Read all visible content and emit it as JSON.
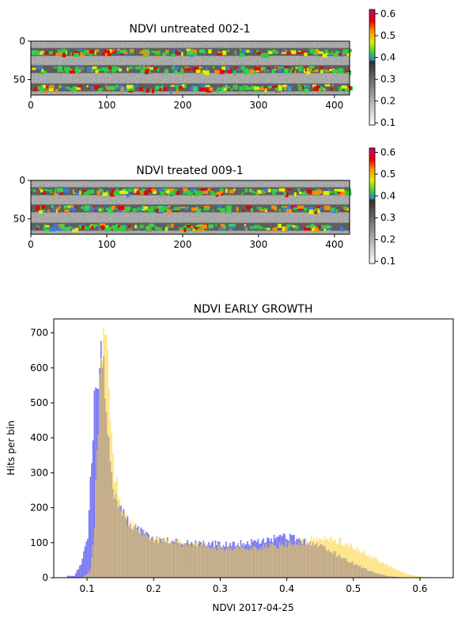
{
  "images": [
    {
      "title": "NDVI untreated 002-1",
      "x_ticks": [
        "0",
        "100",
        "200",
        "300",
        "400"
      ],
      "y_ticks": [
        "0",
        "50"
      ],
      "x_tick_values": [
        0,
        100,
        200,
        300,
        400
      ],
      "y_tick_values": [
        0,
        50
      ],
      "xlim": [
        0,
        420
      ],
      "ylim": [
        0,
        70
      ],
      "colorbar_ticks": [
        "0.6",
        "0.5",
        "0.4",
        "0.3",
        "0.2",
        "0.1"
      ],
      "colorbar_values": [
        0.6,
        0.5,
        0.4,
        0.3,
        0.2,
        0.1
      ],
      "colorbar_range": [
        0.09,
        0.62
      ]
    },
    {
      "title": "NDVI treated 009-1",
      "x_ticks": [
        "0",
        "100",
        "200",
        "300",
        "400"
      ],
      "y_ticks": [
        "0",
        "50"
      ],
      "x_tick_values": [
        0,
        100,
        200,
        300,
        400
      ],
      "y_tick_values": [
        0,
        50
      ],
      "xlim": [
        0,
        420
      ],
      "ylim": [
        0,
        70
      ],
      "colorbar_ticks": [
        "0.6",
        "0.5",
        "0.4",
        "0.3",
        "0.2",
        "0.1"
      ],
      "colorbar_values": [
        0.6,
        0.5,
        0.4,
        0.3,
        0.2,
        0.1
      ],
      "colorbar_range": [
        0.09,
        0.62
      ]
    }
  ],
  "colors": {
    "series_blue": "#7b7bf5",
    "series_yellow": "#fde58a",
    "overlap": "#c2aa86"
  },
  "chart_data": {
    "type": "bar",
    "title": "NDVI EARLY GROWTH",
    "xlabel": "NDVI 2017-04-25",
    "ylabel": "Hits per bin",
    "xlim": [
      0.05,
      0.65
    ],
    "ylim": [
      0,
      740
    ],
    "x_ticks": [
      "0.1",
      "0.2",
      "0.3",
      "0.4",
      "0.5",
      "0.6"
    ],
    "x_tick_values": [
      0.1,
      0.2,
      0.3,
      0.4,
      0.5,
      0.6
    ],
    "y_ticks": [
      "0",
      "100",
      "200",
      "300",
      "400",
      "500",
      "600",
      "700"
    ],
    "y_tick_values": [
      0,
      100,
      200,
      300,
      400,
      500,
      600,
      700
    ],
    "x": [
      0.08,
      0.09,
      0.1,
      0.105,
      0.11,
      0.115,
      0.12,
      0.125,
      0.13,
      0.135,
      0.14,
      0.15,
      0.16,
      0.18,
      0.2,
      0.25,
      0.3,
      0.35,
      0.38,
      0.4,
      0.42,
      0.45,
      0.48,
      0.5,
      0.53,
      0.55,
      0.58,
      0.6,
      0.62
    ],
    "series": [
      {
        "values": [
          5,
          40,
          120,
          300,
          480,
          580,
          620,
          560,
          400,
          300,
          250,
          200,
          160,
          130,
          110,
          100,
          95,
          100,
          110,
          115,
          105,
          90,
          60,
          40,
          15,
          5,
          0,
          0,
          0
        ]
      },
      {
        "values": [
          0,
          0,
          10,
          30,
          150,
          400,
          640,
          700,
          610,
          430,
          300,
          200,
          160,
          130,
          110,
          95,
          85,
          85,
          90,
          95,
          100,
          110,
          105,
          85,
          55,
          35,
          10,
          3,
          0
        ]
      }
    ]
  }
}
